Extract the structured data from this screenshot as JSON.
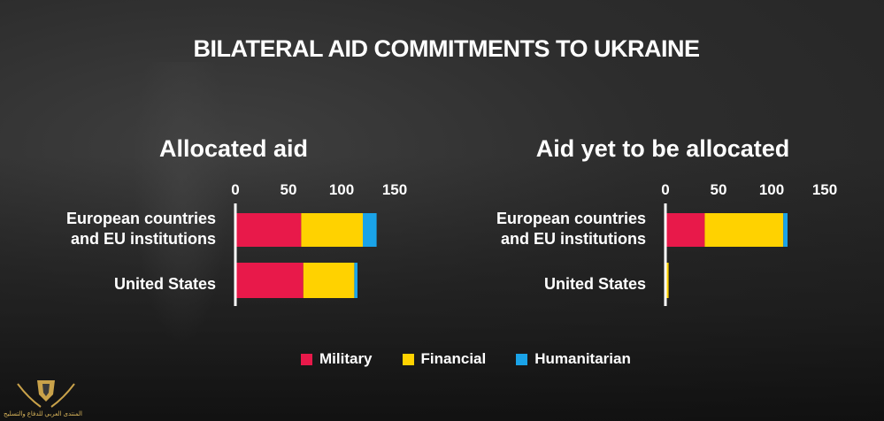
{
  "title": "BILATERAL AID COMMITMENTS TO UKRAINE",
  "colors": {
    "military": "#e8194a",
    "financial": "#ffd200",
    "humanitarian": "#1aa3e8"
  },
  "legend": [
    {
      "label": "Military",
      "color": "#e8194a"
    },
    {
      "label": "Financial",
      "color": "#ffd200"
    },
    {
      "label": "Humanitarian",
      "color": "#1aa3e8"
    }
  ],
  "logo_text": "المنتدى العربي للدفاع والتسليح",
  "chart_data": [
    {
      "type": "bar",
      "orientation": "horizontal",
      "stacked": true,
      "title": "Allocated aid",
      "categories": [
        "European countries\nand EU institutions",
        "United States"
      ],
      "xticks": [
        "0",
        "50",
        "100",
        "150"
      ],
      "xlim": [
        0,
        150
      ],
      "series": [
        {
          "name": "Military",
          "values": [
            62,
            64
          ]
        },
        {
          "name": "Financial",
          "values": [
            58,
            48
          ]
        },
        {
          "name": "Humanitarian",
          "values": [
            13,
            3
          ]
        }
      ]
    },
    {
      "type": "bar",
      "orientation": "horizontal",
      "stacked": true,
      "title": "Aid yet to be allocated",
      "categories": [
        "European countries\nand EU institutions",
        "United States"
      ],
      "xticks": [
        "0",
        "50",
        "100",
        "150"
      ],
      "xlim": [
        0,
        150
      ],
      "series": [
        {
          "name": "Military",
          "values": [
            37,
            0
          ]
        },
        {
          "name": "Financial",
          "values": [
            74,
            3
          ]
        },
        {
          "name": "Humanitarian",
          "values": [
            4,
            0
          ]
        }
      ]
    }
  ]
}
